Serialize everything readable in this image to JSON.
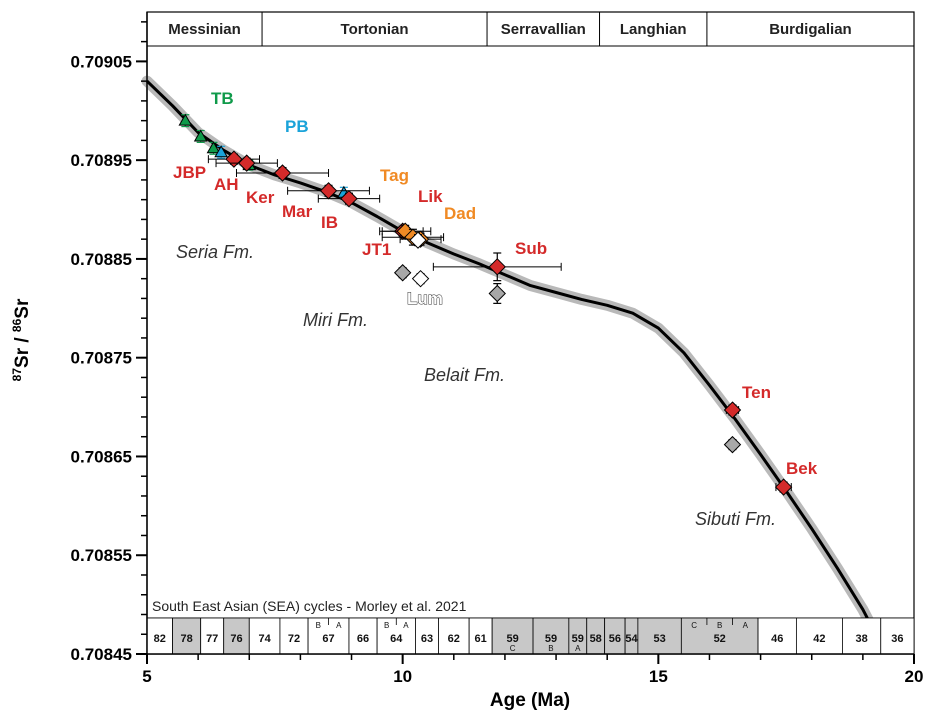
{
  "chart_data": {
    "type": "scatter",
    "xlabel": "Age (Ma)",
    "ylabel_parts": {
      "sup1": "87",
      "base1": "Sr / ",
      "sup2": "86",
      "base2": "Sr"
    },
    "xlim": [
      5,
      20
    ],
    "ylim": [
      0.70845,
      0.7091
    ],
    "x_ticks": [
      "5",
      "10",
      "15",
      "20"
    ],
    "y_ticks": [
      "0.70845",
      "0.70855",
      "0.70865",
      "0.70875",
      "0.70885",
      "0.70895",
      "0.70905"
    ],
    "grid": false,
    "stages": [
      {
        "name": "Messinian",
        "start": 5.0,
        "end": 7.25
      },
      {
        "name": "Tortonian",
        "start": 7.25,
        "end": 11.65
      },
      {
        "name": "Serravallian",
        "start": 11.65,
        "end": 13.85
      },
      {
        "name": "Langhian",
        "start": 13.85,
        "end": 15.95
      },
      {
        "name": "Burdigalian",
        "start": 15.95,
        "end": 20.0
      }
    ],
    "reference_curve": [
      [
        5.0,
        0.70903
      ],
      [
        5.5,
        0.709005
      ],
      [
        6.0,
        0.708978
      ],
      [
        6.5,
        0.70896
      ],
      [
        7.0,
        0.708945
      ],
      [
        7.5,
        0.708935
      ],
      [
        8.0,
        0.708927
      ],
      [
        8.5,
        0.708918
      ],
      [
        9.0,
        0.708907
      ],
      [
        9.5,
        0.708893
      ],
      [
        10.0,
        0.708878
      ],
      [
        10.5,
        0.708866
      ],
      [
        11.0,
        0.708855
      ],
      [
        11.5,
        0.708845
      ],
      [
        12.0,
        0.708834
      ],
      [
        12.5,
        0.708823
      ],
      [
        13.0,
        0.708816
      ],
      [
        13.5,
        0.708809
      ],
      [
        14.0,
        0.708803
      ],
      [
        14.5,
        0.708795
      ],
      [
        15.0,
        0.70878
      ],
      [
        15.5,
        0.708755
      ],
      [
        16.0,
        0.708722
      ],
      [
        16.5,
        0.708688
      ],
      [
        17.0,
        0.708652
      ],
      [
        17.5,
        0.708615
      ],
      [
        18.0,
        0.708577
      ],
      [
        18.5,
        0.708537
      ],
      [
        19.0,
        0.708495
      ],
      [
        19.35,
        0.70846
      ]
    ],
    "series": [
      {
        "name": "TB",
        "marker": "triangle",
        "color": "#0f9a4a",
        "points": [
          {
            "x": 5.75,
            "y": 0.70899,
            "yerr": 6e-06
          },
          {
            "x": 6.05,
            "y": 0.708974,
            "yerr": 6e-06
          },
          {
            "x": 6.3,
            "y": 0.708962,
            "yerr": 6e-06
          },
          {
            "x": 7.0,
            "y": 0.708945,
            "yerr": 5e-06
          }
        ]
      },
      {
        "name": "PB",
        "marker": "triangle",
        "color": "#1aa3d9",
        "points": [
          {
            "x": 6.45,
            "y": 0.708958,
            "yerr": 6e-06
          },
          {
            "x": 8.85,
            "y": 0.708917,
            "yerr": 5.5e-06
          }
        ]
      },
      {
        "name": "Red samples",
        "marker": "diamond",
        "color": "#d42a2a",
        "points": [
          {
            "label": "JBP",
            "x": 6.7,
            "y": 0.708951,
            "xerr": 0.5,
            "yerr": 5e-06
          },
          {
            "label": "AH",
            "x": 6.95,
            "y": 0.708947,
            "xerr": 0.6,
            "yerr": 5e-06
          },
          {
            "label": "Ker",
            "x": 7.65,
            "y": 0.708937,
            "xerr": 0.9,
            "yerr": 5.5e-06
          },
          {
            "label": "Mar",
            "x": 8.55,
            "y": 0.708919,
            "xerr": 0.8,
            "yerr": 5.5e-06
          },
          {
            "label": "IB",
            "x": 8.95,
            "y": 0.708911,
            "xerr": 0.6,
            "yerr": 5.5e-06
          },
          {
            "label": "JT1",
            "x": 10.0,
            "y": 0.708878,
            "xerr": 0.4,
            "yerr": 5e-06
          },
          {
            "label": "Sub",
            "x": 11.85,
            "y": 0.708842,
            "xerr": 1.25,
            "yerr": 1.4e-05
          },
          {
            "label": "Ten",
            "x": 16.45,
            "y": 0.708697,
            "xerr": 0.12,
            "yerr": 5e-06
          },
          {
            "label": "Bek",
            "x": 17.45,
            "y": 0.708619,
            "xerr": 0.15,
            "yerr": 5e-06
          }
        ]
      },
      {
        "name": "Orange samples",
        "marker": "diamond",
        "color": "#f08a24",
        "points": [
          {
            "label": "Tag",
            "x": 10.05,
            "y": 0.708878,
            "xerr": 0.5,
            "yerr": 6e-06
          },
          {
            "label": "Lik",
            "x": 10.2,
            "y": 0.708872,
            "xerr": 0.6,
            "yerr": 8e-06
          },
          {
            "label": "Dad",
            "x": 10.35,
            "y": 0.70887,
            "xerr": 0.4,
            "yerr": 6e-06
          }
        ]
      },
      {
        "name": "Gray samples",
        "marker": "diamond",
        "color": "#a8a8a8",
        "points": [
          {
            "x": 10.0,
            "y": 0.708836,
            "yerr": 5e-06
          },
          {
            "x": 11.85,
            "y": 0.708815,
            "yerr": 1e-05
          },
          {
            "x": 16.45,
            "y": 0.708662,
            "yerr": 5e-06
          }
        ]
      },
      {
        "name": "Lum",
        "marker": "diamond",
        "color": "#ffffff",
        "points": [
          {
            "x": 10.3,
            "y": 0.708869,
            "yerr": 5.5e-06
          },
          {
            "x": 10.35,
            "y": 0.70883,
            "yerr": 5e-06
          }
        ]
      }
    ],
    "point_labels": [
      {
        "text": "TB",
        "color": "#0f9a4a"
      },
      {
        "text": "PB",
        "color": "#1aa3d9"
      },
      {
        "text": "JBP",
        "color": "#d42a2a"
      },
      {
        "text": "AH",
        "color": "#d42a2a"
      },
      {
        "text": "Ker",
        "color": "#d42a2a"
      },
      {
        "text": "Mar",
        "color": "#d42a2a"
      },
      {
        "text": "IB",
        "color": "#d42a2a"
      },
      {
        "text": "Tag",
        "color": "#f08a24"
      },
      {
        "text": "Lik",
        "color": "#d42a2a"
      },
      {
        "text": "Dad",
        "color": "#f08a24"
      },
      {
        "text": "JT1",
        "color": "#d42a2a"
      },
      {
        "text": "Sub",
        "color": "#d42a2a"
      },
      {
        "text": "Lum",
        "color": "#ffffff"
      },
      {
        "text": "Ten",
        "color": "#d42a2a"
      },
      {
        "text": "Bek",
        "color": "#d42a2a"
      }
    ],
    "formations": [
      "Seria Fm.",
      "Miri Fm.",
      "Belait Fm.",
      "Sibuti Fm."
    ],
    "cycles_title": "South East Asian (SEA) cycles - Morley et al. 2021",
    "cycles": [
      {
        "label": "82",
        "start": 5.0,
        "end": 5.5,
        "shade": false
      },
      {
        "label": "78",
        "start": 5.5,
        "end": 6.05,
        "shade": true
      },
      {
        "label": "77",
        "start": 6.05,
        "end": 6.5,
        "shade": false
      },
      {
        "label": "76",
        "start": 6.5,
        "end": 7.0,
        "shade": true
      },
      {
        "label": "74",
        "start": 7.0,
        "end": 7.6,
        "shade": false
      },
      {
        "label": "72",
        "start": 7.6,
        "end": 8.15,
        "shade": false
      },
      {
        "label": "67",
        "start": 8.15,
        "end": 8.95,
        "shade": false,
        "subs": [
          "B",
          "A"
        ]
      },
      {
        "label": "66",
        "start": 8.95,
        "end": 9.5,
        "shade": false
      },
      {
        "label": "64",
        "start": 9.5,
        "end": 10.25,
        "shade": false,
        "subs": [
          "B",
          "A"
        ]
      },
      {
        "label": "63",
        "start": 10.25,
        "end": 10.7,
        "shade": false
      },
      {
        "label": "62",
        "start": 10.7,
        "end": 11.3,
        "shade": false
      },
      {
        "label": "61",
        "start": 11.3,
        "end": 11.75,
        "shade": false
      },
      {
        "label": "59",
        "start": 11.75,
        "end": 12.55,
        "shade": true,
        "sub": "C"
      },
      {
        "label": "59",
        "start": 12.55,
        "end": 13.25,
        "shade": true,
        "sub": "B"
      },
      {
        "label": "59",
        "start": 13.25,
        "end": 13.6,
        "shade": true,
        "sub": "A"
      },
      {
        "label": "58",
        "start": 13.6,
        "end": 13.95,
        "shade": true
      },
      {
        "label": "56",
        "start": 13.95,
        "end": 14.35,
        "shade": true
      },
      {
        "label": "54",
        "start": 14.35,
        "end": 14.6,
        "shade": true
      },
      {
        "label": "53",
        "start": 14.6,
        "end": 15.45,
        "shade": true
      },
      {
        "label": "52",
        "start": 15.45,
        "end": 16.95,
        "shade": true,
        "subs": [
          "C",
          "B",
          "A"
        ]
      },
      {
        "label": "46",
        "start": 16.95,
        "end": 17.7,
        "shade": false
      },
      {
        "label": "42",
        "start": 17.7,
        "end": 18.6,
        "shade": false
      },
      {
        "label": "38",
        "start": 18.6,
        "end": 19.35,
        "shade": false
      },
      {
        "label": "36",
        "start": 19.35,
        "end": 20.0,
        "shade": false
      }
    ]
  }
}
